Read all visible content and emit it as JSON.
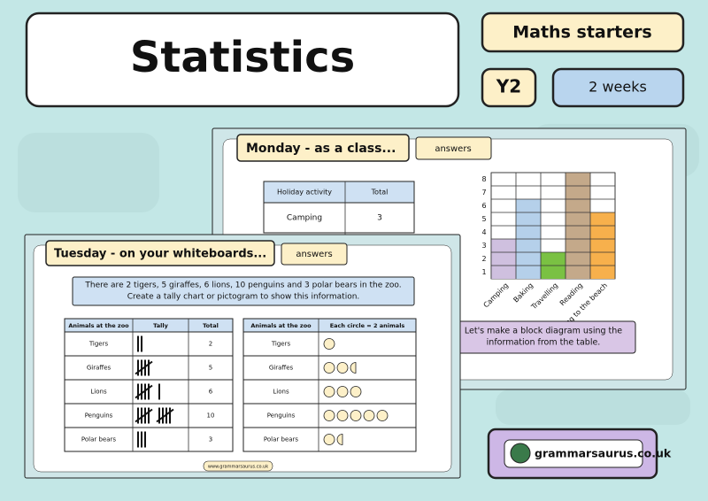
{
  "header": {
    "title": "Statistics",
    "series_tag": "Maths starters",
    "year_tag": "Y2",
    "duration_tag": "2 weeks"
  },
  "monday": {
    "title": "Monday - as a class...",
    "button": "answers",
    "table": {
      "headers": [
        "Holiday activity",
        "Total"
      ],
      "rows": [
        [
          "Camping",
          "3"
        ]
      ]
    },
    "block_diagram": {
      "type": "bar",
      "categories": [
        "Camping",
        "Baking",
        "Travelling",
        "Reading",
        "Going to the beach"
      ],
      "values": [
        3,
        6,
        2,
        8,
        5
      ],
      "colors": [
        "#cfc0df",
        "#b5d0ea",
        "#7ac143",
        "#c4a98a",
        "#f7b04c"
      ],
      "ylim": [
        0,
        8
      ],
      "yticks": [
        1,
        2,
        3,
        4,
        5,
        6,
        7,
        8
      ]
    },
    "caption": [
      "Let's make a block diagram using the",
      "information from the table."
    ]
  },
  "tuesday": {
    "title": "Tuesday - on your whiteboards...",
    "button": "answers",
    "instruction": [
      "There are 2 tigers, 5 giraffes, 6 lions, 10 penguins and 3 polar bears in the zoo.",
      "Create a tally chart or pictogram to show this information."
    ],
    "tally_headers": [
      "Animals at the zoo",
      "Tally",
      "Total"
    ],
    "pictogram_headers": [
      "Animals at the zoo",
      "Each circle = 2 animals"
    ],
    "animals": [
      {
        "name": "Tigers",
        "total": 2
      },
      {
        "name": "Giraffes",
        "total": 5
      },
      {
        "name": "Lions",
        "total": 6
      },
      {
        "name": "Penguins",
        "total": 10
      },
      {
        "name": "Polar bears",
        "total": 3
      }
    ],
    "footer": "www.grammarsaurus.co.uk"
  },
  "logo": "grammarsaurus.co.uk"
}
